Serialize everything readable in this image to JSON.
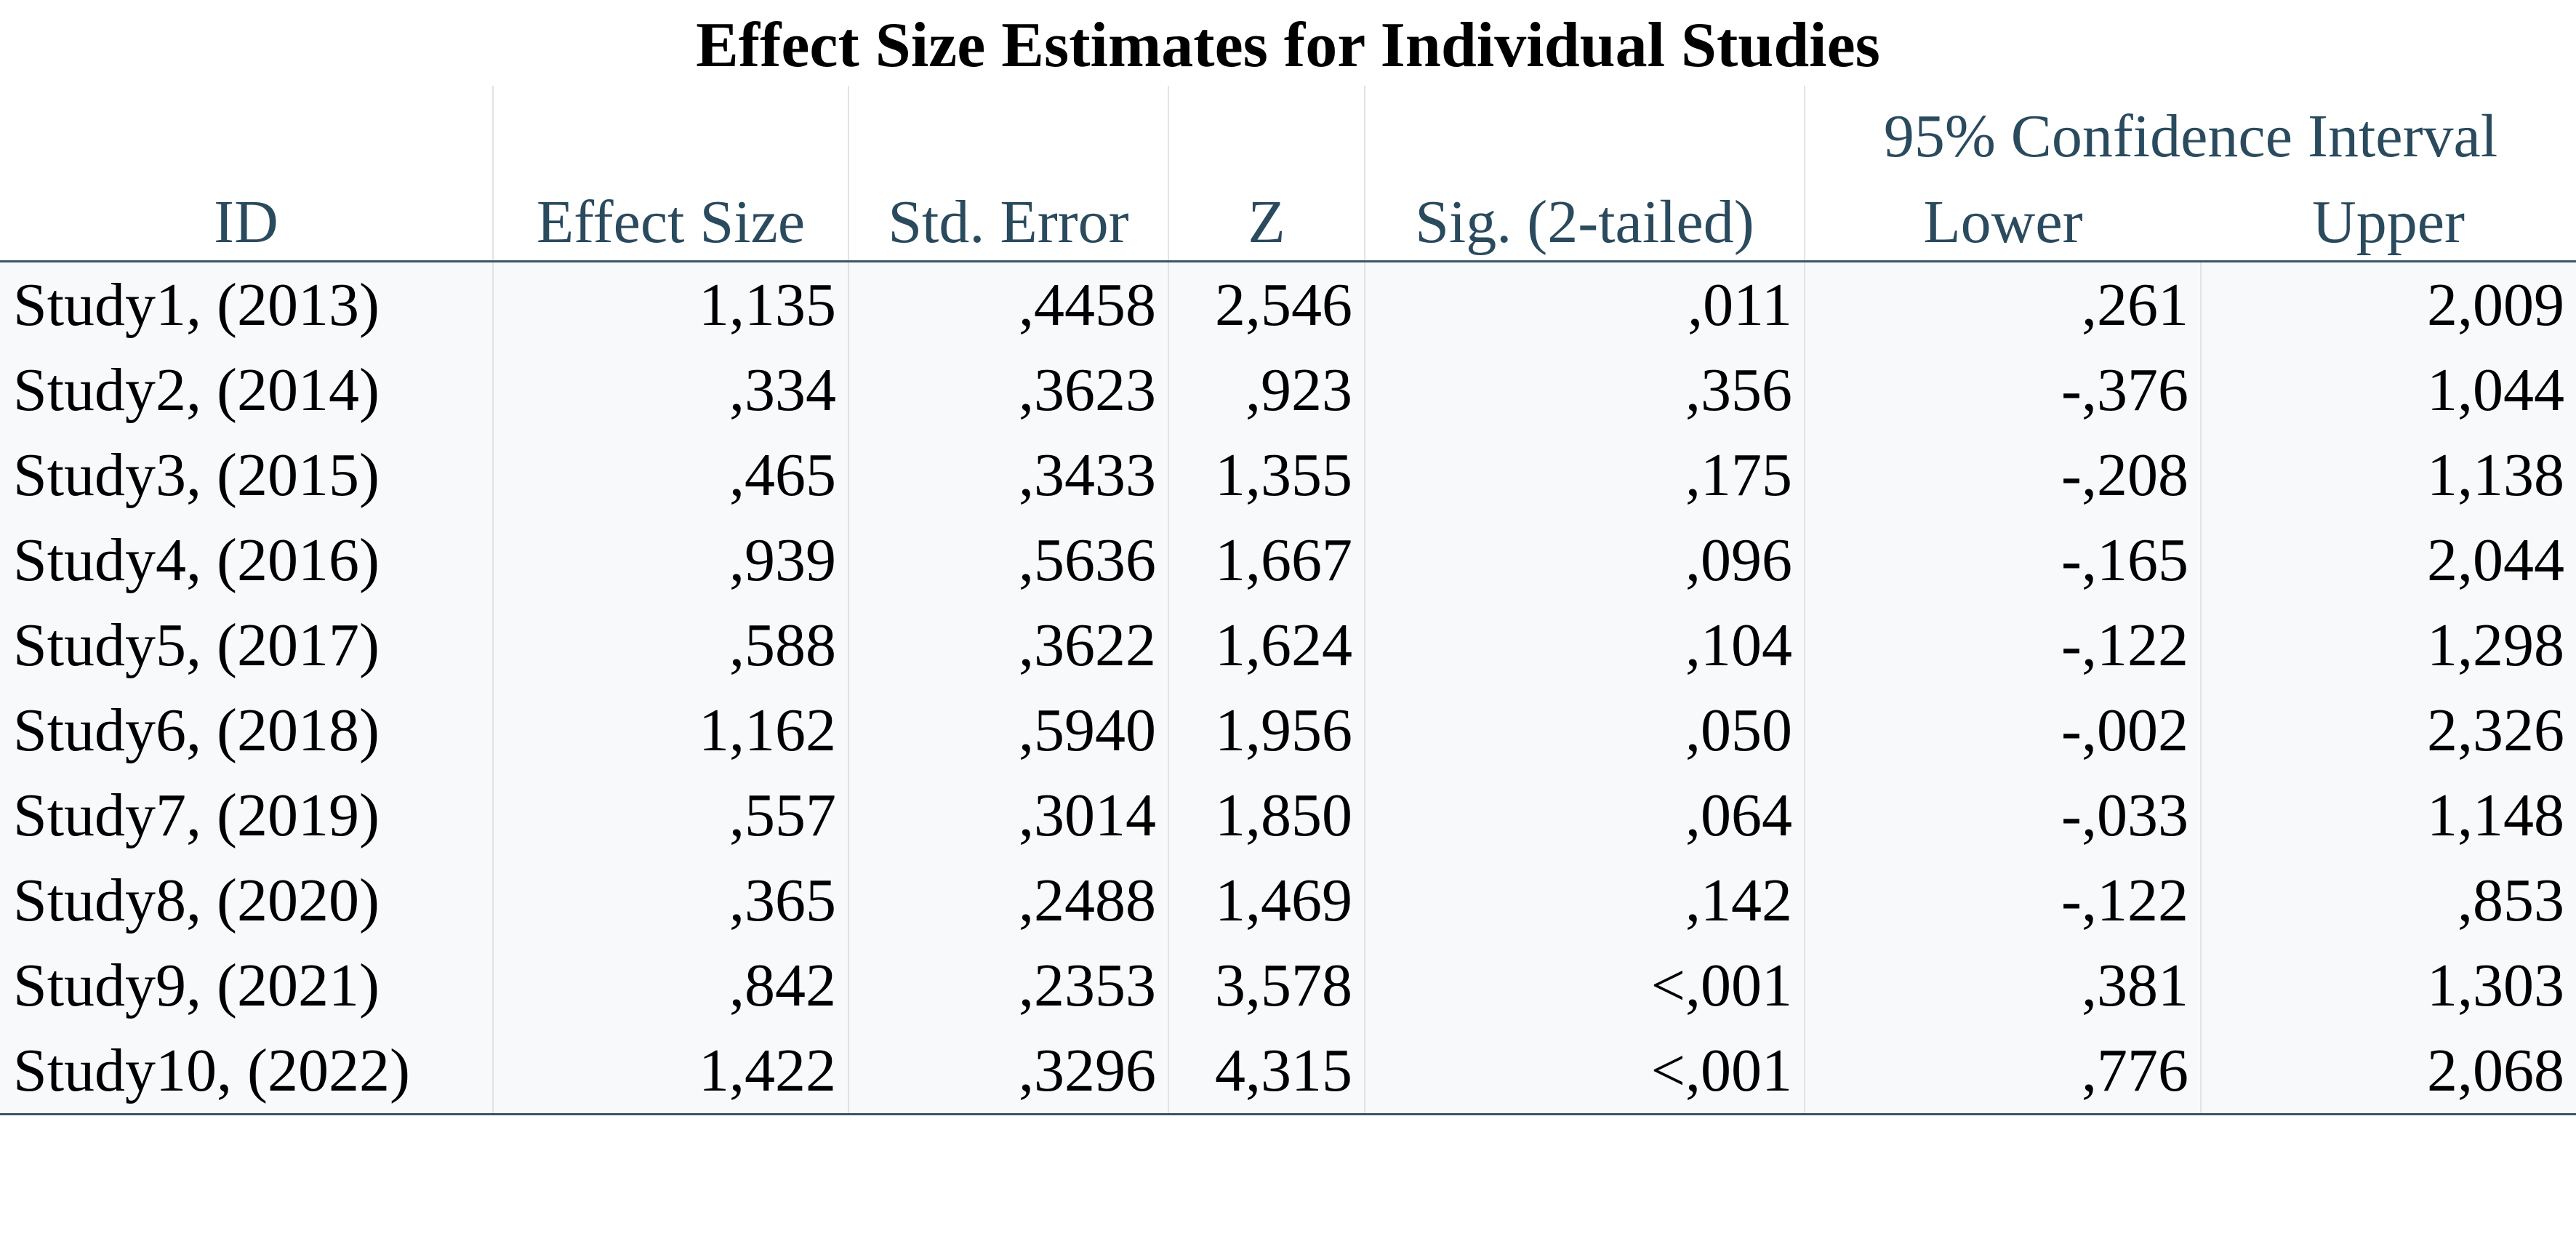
{
  "title": "Effect Size Estimates for Individual Studies",
  "table": {
    "group_header": "95% Confidence Interval",
    "columns": [
      "ID",
      "Effect Size",
      "Std. Error",
      "Z",
      "Sig. (2-tailed)",
      "Lower",
      "Upper"
    ],
    "rows": [
      [
        "Study1, (2013)",
        "1,135",
        ",4458",
        "2,546",
        ",011",
        ",261",
        "2,009"
      ],
      [
        "Study2, (2014)",
        ",334",
        ",3623",
        ",923",
        ",356",
        "-,376",
        "1,044"
      ],
      [
        "Study3, (2015)",
        ",465",
        ",3433",
        "1,355",
        ",175",
        "-,208",
        "1,138"
      ],
      [
        "Study4, (2016)",
        ",939",
        ",5636",
        "1,667",
        ",096",
        "-,165",
        "2,044"
      ],
      [
        "Study5, (2017)",
        ",588",
        ",3622",
        "1,624",
        ",104",
        "-,122",
        "1,298"
      ],
      [
        "Study6, (2018)",
        "1,162",
        ",5940",
        "1,956",
        ",050",
        "-,002",
        "2,326"
      ],
      [
        "Study7, (2019)",
        ",557",
        ",3014",
        "1,850",
        ",064",
        "-,033",
        "1,148"
      ],
      [
        "Study8, (2020)",
        ",365",
        ",2488",
        "1,469",
        ",142",
        "-,122",
        ",853"
      ],
      [
        "Study9, (2021)",
        ",842",
        ",2353",
        "3,578",
        "<,001",
        ",381",
        "1,303"
      ],
      [
        "Study10, (2022)",
        "1,422",
        ",3296",
        "4,315",
        "<,001",
        ",776",
        "2,068"
      ]
    ]
  },
  "colors": {
    "header_text": "#2a4a5e",
    "rule": "#3a5566",
    "row_background": "#f8f9fb"
  }
}
